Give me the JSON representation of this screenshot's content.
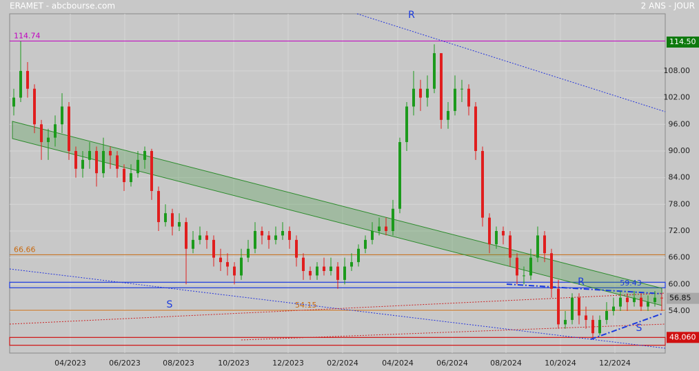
{
  "chart_data": {
    "type": "candlestick",
    "header_left": "ERAMET - abcbourse.com",
    "header_right": "2 ANS - JOUR",
    "xlim": [
      -0.6,
      94.5
    ],
    "ylim": [
      44.54,
      120.86
    ],
    "xticks": [
      {
        "value": 8.2,
        "label": "04/2023"
      },
      {
        "value": 16.1,
        "label": "06/2023"
      },
      {
        "value": 23.9,
        "label": "08/2023"
      },
      {
        "value": 31.9,
        "label": "10/2023"
      },
      {
        "value": 39.8,
        "label": "12/2023"
      },
      {
        "value": 47.7,
        "label": "02/2024"
      },
      {
        "value": 55.7,
        "label": "04/2024"
      },
      {
        "value": 63.6,
        "label": "06/2024"
      },
      {
        "value": 71.4,
        "label": "08/2024"
      },
      {
        "value": 79.3,
        "label": "10/2024"
      },
      {
        "value": 87.2,
        "label": "12/2024"
      }
    ],
    "yticks": [
      {
        "value": 54,
        "label": "54.00"
      },
      {
        "value": 60,
        "label": "60.00"
      },
      {
        "value": 66,
        "label": "66.00"
      },
      {
        "value": 72,
        "label": "72.00"
      },
      {
        "value": 78,
        "label": "78.00"
      },
      {
        "value": 84,
        "label": "84.00"
      },
      {
        "value": 90,
        "label": "90.00"
      },
      {
        "value": 96,
        "label": "96.00"
      },
      {
        "value": 102,
        "label": "102.00"
      },
      {
        "value": 108,
        "label": "108.00"
      }
    ],
    "grid": true,
    "up_color": "#1c9a1c",
    "down_color": "#e01e1e",
    "open": [
      100,
      102,
      108,
      104,
      96,
      92,
      93,
      96,
      100,
      90,
      86,
      88,
      90,
      85,
      90,
      89,
      86,
      83,
      85,
      88,
      90,
      81,
      74,
      76,
      73,
      74,
      68,
      70,
      71,
      70,
      66,
      65,
      64,
      62,
      66,
      68,
      72,
      71,
      70,
      71,
      72,
      70,
      66,
      63,
      62,
      64,
      63,
      64,
      61,
      64,
      65,
      68,
      70,
      72,
      73,
      72,
      77,
      92,
      100,
      104,
      102,
      104,
      112,
      97,
      99,
      104,
      104,
      100,
      90,
      75,
      69,
      72,
      71,
      66,
      62,
      62,
      66,
      71,
      67,
      59,
      51,
      52,
      57,
      53,
      52,
      49,
      52,
      54,
      55,
      57,
      56,
      57,
      55,
      56,
      57
    ],
    "high": [
      104,
      114.7,
      110,
      105,
      97,
      95,
      98,
      103,
      101,
      91,
      90,
      92,
      91,
      93,
      91,
      90,
      87,
      87,
      90,
      91,
      90.5,
      82,
      78,
      77,
      76,
      75,
      72,
      73,
      72,
      71,
      68,
      67,
      65,
      68,
      70,
      74,
      73,
      72,
      73,
      74,
      73,
      71,
      67,
      64,
      65,
      66,
      66,
      65,
      66,
      67,
      69,
      71,
      74,
      75,
      75,
      79,
      93,
      101,
      108,
      106,
      107,
      114,
      112,
      101,
      107,
      106,
      105,
      101,
      91,
      76,
      73,
      73,
      72,
      67,
      64,
      68,
      73,
      72,
      68,
      61,
      54,
      58,
      58,
      55,
      53,
      53,
      56,
      57,
      58.5,
      58,
      58.5,
      58,
      57.5,
      58.5,
      58
    ],
    "low": [
      98,
      101,
      102,
      94,
      88,
      88,
      91,
      94,
      88,
      84,
      84,
      86,
      82,
      84,
      86,
      84,
      81,
      82,
      84,
      86,
      79,
      72,
      73,
      71,
      72,
      60,
      67,
      69,
      68,
      64,
      63,
      62,
      60,
      61,
      65,
      67,
      69,
      68,
      69,
      70,
      68,
      64,
      61,
      61,
      61,
      62,
      62,
      59,
      60,
      63,
      64,
      67,
      69,
      71,
      71,
      71,
      76,
      90,
      98,
      99,
      100,
      103,
      95,
      95,
      98,
      101,
      98,
      88,
      73,
      67,
      68,
      69,
      64,
      60,
      60,
      61,
      65,
      65,
      57,
      50,
      50,
      51,
      51,
      50,
      48.1,
      48.5,
      51,
      53,
      54,
      54,
      55,
      54,
      54,
      55,
      54
    ],
    "close": [
      102,
      108,
      104,
      96,
      92,
      93,
      96,
      100,
      90,
      86,
      88,
      90,
      85,
      90,
      89,
      86,
      83,
      85,
      88,
      90,
      81,
      74,
      76,
      73,
      74,
      68,
      70,
      71,
      70,
      66,
      65,
      64,
      62,
      66,
      68,
      72,
      71,
      70,
      71,
      72,
      70,
      66,
      63,
      62,
      64,
      63,
      64,
      61,
      64,
      65,
      68,
      70,
      72,
      73,
      72,
      77,
      92,
      100,
      104,
      102,
      104,
      112,
      97,
      99,
      104,
      104,
      100,
      90,
      75,
      69,
      72,
      71,
      66,
      62,
      62,
      66,
      71,
      67,
      59,
      51,
      52,
      57,
      53,
      52,
      49,
      52,
      54,
      55,
      57,
      56,
      57,
      55,
      56,
      57,
      56.85
    ],
    "levels": [
      {
        "value": 114.74,
        "color": "#c000c0"
      },
      {
        "value": 66.66,
        "color": "#c86a10"
      },
      {
        "value": 54.15,
        "color": "#c86a10"
      }
    ],
    "zones": [
      {
        "low": 59.23,
        "high": 60.47,
        "color": "#1a3adf"
      },
      {
        "low": 46.3,
        "high": 48.06,
        "color": "#d01010"
      }
    ],
    "tags": [
      {
        "value": 114.5,
        "label": "114.50",
        "color": "#0e7a0e"
      },
      {
        "value": 56.85,
        "color": "#a8a8a8"
      },
      {
        "value": 48.06,
        "label": "48.060",
        "color": "#d01010"
      }
    ],
    "annotations": [
      "R",
      "S",
      "R",
      "59.43",
      "S"
    ]
  }
}
